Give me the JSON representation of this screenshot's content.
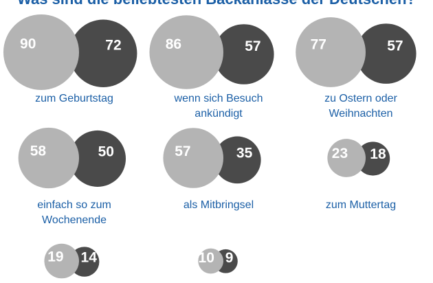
{
  "title": "Was sind die beliebtesten Backanlässe der Deutschen?",
  "items": [
    {
      "label": [
        "zum Geburtstag"
      ],
      "values": [
        90,
        72
      ]
    },
    {
      "label": [
        "wenn sich Besuch",
        "ankündigt"
      ],
      "values": [
        86,
        57
      ]
    },
    {
      "label": [
        "zu Ostern oder",
        "Weihnachten"
      ],
      "values": [
        77,
        57
      ]
    },
    {
      "label": [
        "einfach so zum",
        "Wochenende"
      ],
      "values": [
        58,
        50
      ]
    },
    {
      "label": [
        "als Mitbringsel"
      ],
      "values": [
        57,
        35
      ]
    },
    {
      "label": [
        "zum Muttertag"
      ],
      "values": [
        23,
        18
      ]
    },
    {
      "values": [
        19,
        14
      ]
    },
    {
      "values": [
        10,
        9
      ]
    }
  ]
}
